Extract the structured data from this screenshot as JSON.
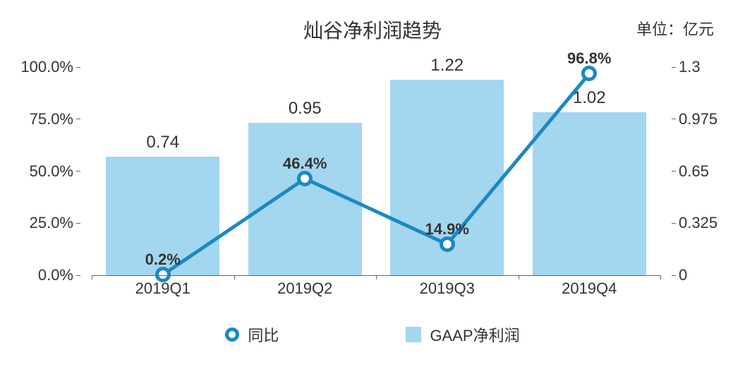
{
  "chart": {
    "type": "bar+line",
    "title": "灿谷净利润趋势",
    "unit_label": "单位：亿元",
    "background_color": "#ffffff",
    "categories": [
      "2019Q1",
      "2019Q2",
      "2019Q3",
      "2019Q4"
    ],
    "bar_series": {
      "name": "GAAP净利润",
      "values": [
        0.74,
        0.95,
        1.22,
        1.02
      ],
      "value_labels": [
        "0.74",
        "0.95",
        "1.22",
        "1.02"
      ],
      "color": "#a3d6ef",
      "bar_width_pct": 80
    },
    "line_series": {
      "name": "同比",
      "values": [
        0.2,
        46.4,
        14.9,
        96.8
      ],
      "value_labels": [
        "0.2%",
        "46.4%",
        "14.9%",
        "96.8%"
      ],
      "color": "#1b88c4",
      "line_width": 5,
      "marker_size": 22,
      "marker_border": 5,
      "marker_fill": "#ffffff"
    },
    "y_left": {
      "min": 0,
      "max": 100,
      "step": 25,
      "ticks": [
        "0.0%",
        "25.0%",
        "50.0%",
        "75.0%",
        "100.0%"
      ]
    },
    "y_right": {
      "min": 0,
      "max": 1.3,
      "step": 0.325,
      "ticks": [
        "0",
        "0.325",
        "0.65",
        "0.975",
        "1.3"
      ]
    },
    "axis_color": "#666666",
    "text_color": "#333333",
    "title_fontsize": 28,
    "label_fontsize": 22,
    "datalabel_fontsize": 24,
    "legend": {
      "items": [
        {
          "key": "line",
          "label": "同比"
        },
        {
          "key": "bar",
          "label": "GAAP净利润"
        }
      ]
    }
  }
}
